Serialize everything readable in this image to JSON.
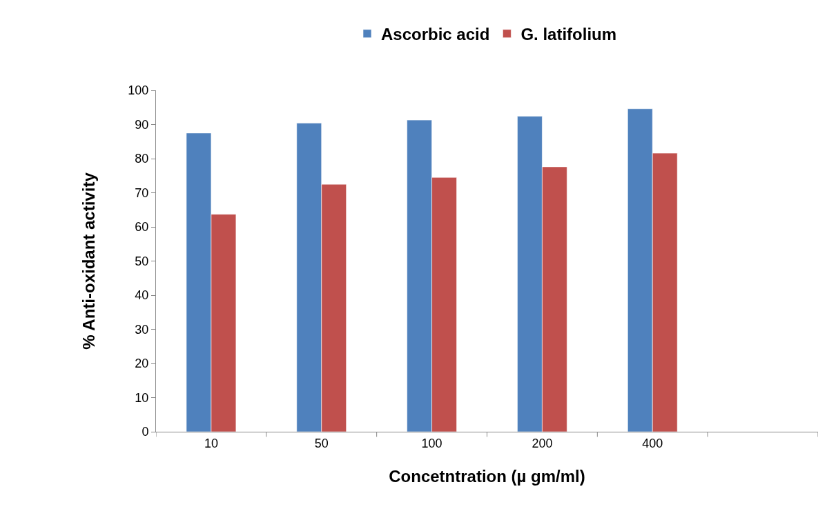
{
  "chart_data": {
    "type": "bar",
    "xlabel": "Concetntration (µ gm/ml)",
    "ylabel": "% Anti-oxidant activity",
    "categories": [
      "10",
      "50",
      "100",
      "200",
      "400",
      null
    ],
    "series": [
      {
        "name": "Ascorbic acid",
        "color": "#4f81bd",
        "values": [
          87.5,
          90.4,
          91.3,
          92.4,
          94.6,
          null
        ]
      },
      {
        "name": "G. latifolium",
        "color": "#c0504d",
        "values": [
          63.7,
          72.5,
          74.5,
          77.6,
          81.6,
          null
        ]
      }
    ],
    "ylim": [
      0,
      100
    ],
    "yticks": [
      0,
      10,
      20,
      30,
      40,
      50,
      60,
      70,
      80,
      90,
      100
    ],
    "grid": false,
    "legend": "top"
  }
}
